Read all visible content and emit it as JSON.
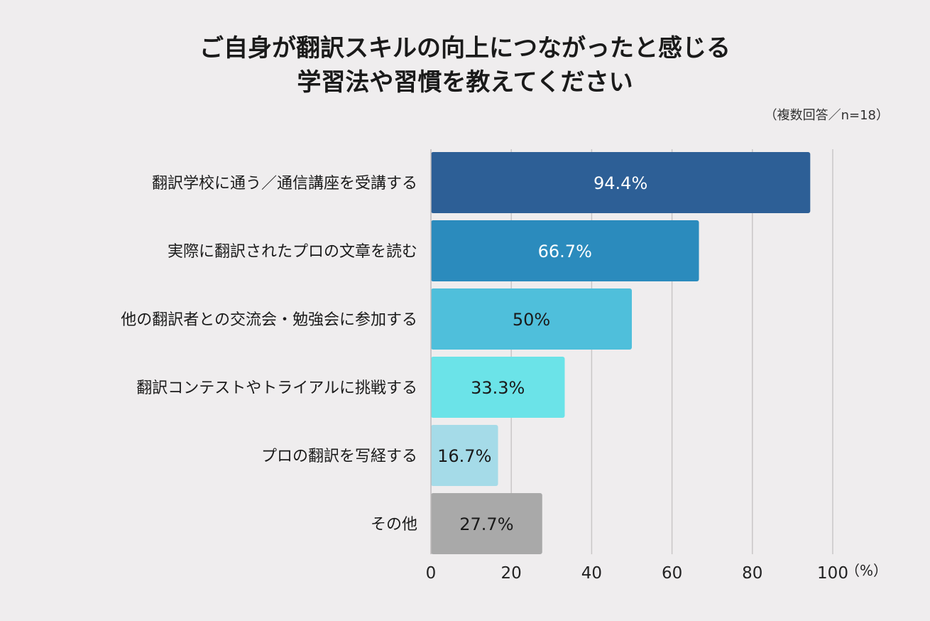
{
  "title_lines": [
    "ご自身が翻訳スキルの向上につながったと感じる",
    "学習法や習慣を教えてください"
  ],
  "note": "（複数回答／n=18）",
  "chart_data": {
    "type": "bar",
    "orientation": "horizontal",
    "categories": [
      "翻訳学校に通う／通信講座を受講する",
      "実際に翻訳されたプロの文章を読む",
      "他の翻訳者との交流会・勉強会に参加する",
      "翻訳コンテストやトライアルに挑戦する",
      "プロの翻訳を写経する",
      "その他"
    ],
    "values": [
      94.4,
      66.7,
      50,
      33.3,
      16.7,
      27.7
    ],
    "value_labels": [
      "94.4%",
      "66.7%",
      "50%",
      "33.3%",
      "16.7%",
      "27.7%"
    ],
    "bar_colors": [
      "#2d5f96",
      "#2b8bbd",
      "#4fbfdb",
      "#6be3e8",
      "#a5dbe8",
      "#a9a9a9"
    ],
    "label_colors": [
      "#ffffff",
      "#ffffff",
      "#1a1a1a",
      "#1a1a1a",
      "#1a1a1a",
      "#1a1a1a"
    ],
    "xlim": [
      0,
      100
    ],
    "xticks": [
      0,
      20,
      40,
      60,
      80,
      100
    ],
    "x_unit": "（%）",
    "grid": true
  }
}
